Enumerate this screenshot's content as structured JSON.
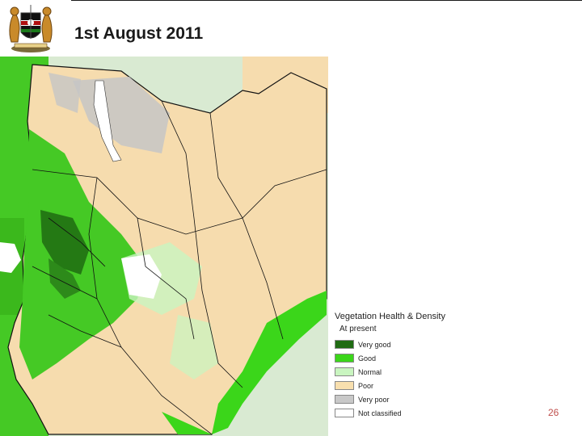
{
  "slide": {
    "title": "1st August 2011",
    "page_number": "26"
  },
  "legend": {
    "title": "Vegetation Health & Density",
    "subtitle": "At present",
    "items": [
      {
        "label": "Very good",
        "color": "#1f6b12"
      },
      {
        "label": "Good",
        "color": "#3bd61a"
      },
      {
        "label": "Normal",
        "color": "#c9f5c0"
      },
      {
        "label": "Poor",
        "color": "#f8dfae"
      },
      {
        "label": "Very poor",
        "color": "#c8c8c8"
      },
      {
        "label": "Not classified",
        "color": "#ffffff"
      }
    ]
  },
  "map": {
    "outside_color": "#e8e8e8"
  }
}
